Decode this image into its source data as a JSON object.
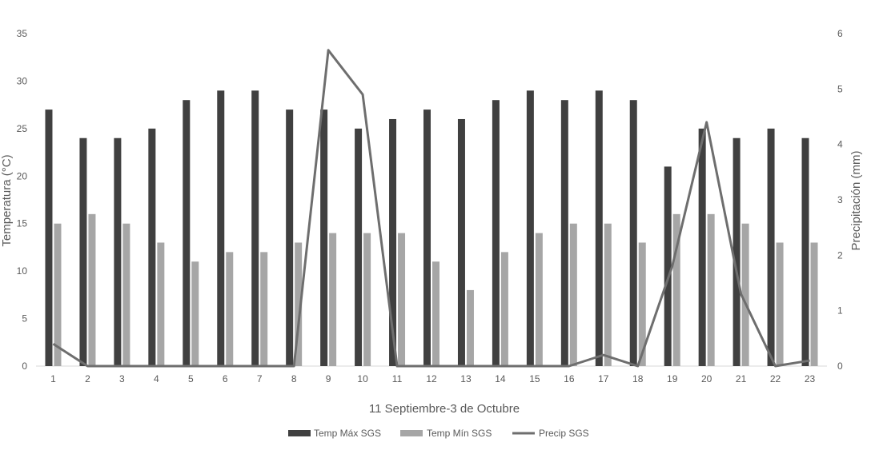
{
  "chart_data": {
    "type": "bar",
    "title": "",
    "xlabel": "11 Septiembre-3 de Octubre",
    "ylabel": "Temperatura (°C)",
    "y2label": "Precipitación (mm)",
    "ylim": [
      0,
      35
    ],
    "y2lim": [
      0,
      6
    ],
    "yticks": [
      "0",
      "5",
      "10",
      "15",
      "20",
      "25",
      "30",
      "35"
    ],
    "y2ticks": [
      "0",
      "1",
      "2",
      "3",
      "4",
      "5",
      "6"
    ],
    "grid": false,
    "legend_position": "bottom",
    "categories": [
      "1",
      "2",
      "3",
      "4",
      "5",
      "6",
      "7",
      "8",
      "9",
      "10",
      "11",
      "12",
      "13",
      "14",
      "15",
      "16",
      "17",
      "18",
      "19",
      "20",
      "21",
      "22",
      "23"
    ],
    "series": [
      {
        "name": "Temp Máx SGS",
        "kind": "bar",
        "axis": "left",
        "color": "#404040",
        "values": [
          27,
          24,
          24,
          25,
          28,
          29,
          29,
          27,
          27,
          25,
          26,
          27,
          26,
          28,
          29,
          28,
          29,
          28,
          21,
          25,
          24,
          25,
          24
        ]
      },
      {
        "name": "Temp Mín SGS",
        "kind": "bar",
        "axis": "left",
        "color": "#a6a6a6",
        "values": [
          15,
          16,
          15,
          13,
          11,
          12,
          12,
          13,
          14,
          14,
          14,
          11,
          8,
          12,
          14,
          15,
          15,
          13,
          16,
          16,
          15,
          13,
          13
        ]
      },
      {
        "name": "Precip SGS",
        "kind": "line",
        "axis": "right",
        "color": "#6e6e6e",
        "values": [
          0.4,
          0,
          0,
          0,
          0,
          0,
          0,
          0,
          5.7,
          4.9,
          0,
          0,
          0,
          0,
          0,
          0,
          0.2,
          0,
          1.8,
          4.4,
          1.3,
          0,
          0.1
        ]
      }
    ]
  }
}
